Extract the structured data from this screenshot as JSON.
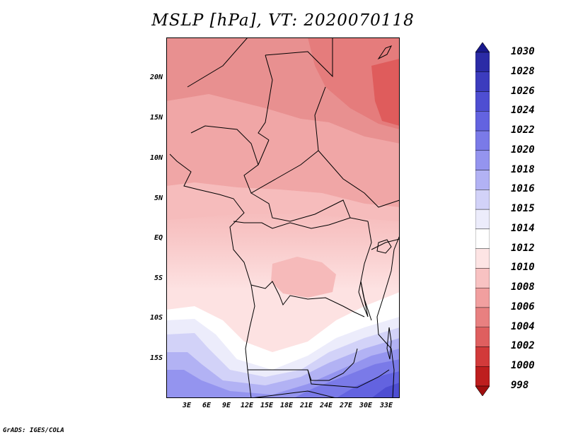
{
  "title": "MSLP [hPa], VT: 2020070118",
  "footer": "GrADS: IGES/COLA",
  "map": {
    "lat_labels": [
      "20N",
      "15N",
      "10N",
      "5N",
      "EQ",
      "5S",
      "10S",
      "15S"
    ],
    "lon_labels": [
      "3E",
      "6E",
      "9E",
      "12E",
      "15E",
      "18E",
      "21E",
      "24E",
      "27E",
      "30E",
      "33E"
    ]
  },
  "colorbar": {
    "labels": [
      "1030",
      "1028",
      "1026",
      "1024",
      "1022",
      "1020",
      "1018",
      "1016",
      "1015",
      "1014",
      "1012",
      "1010",
      "1008",
      "1006",
      "1004",
      "1002",
      "1000",
      "998"
    ],
    "colors": [
      "#19198c",
      "#2b2ba6",
      "#3c3cbe",
      "#4e4ed2",
      "#6363e0",
      "#7a7ae8",
      "#9494ef",
      "#b2b2f4",
      "#d2d2f8",
      "#ececfb",
      "#ffffff",
      "#fde4e4",
      "#f8c2c2",
      "#f19f9f",
      "#e88080",
      "#df5f5f",
      "#d23a3a",
      "#be1e1e",
      "#a00f0f"
    ]
  }
}
